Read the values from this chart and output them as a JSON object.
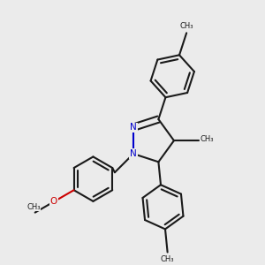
{
  "bg": "#ebebeb",
  "bc": "#1a1a1a",
  "nc": "#0000cc",
  "oc": "#cc0000",
  "lw": 1.5,
  "dbo": 0.011,
  "afs": 7.5,
  "sfs": 6.0,
  "figsize": [
    3.0,
    3.0
  ],
  "dpi": 100,
  "xlim": [
    0.05,
    0.95
  ],
  "ylim": [
    0.08,
    0.98
  ]
}
